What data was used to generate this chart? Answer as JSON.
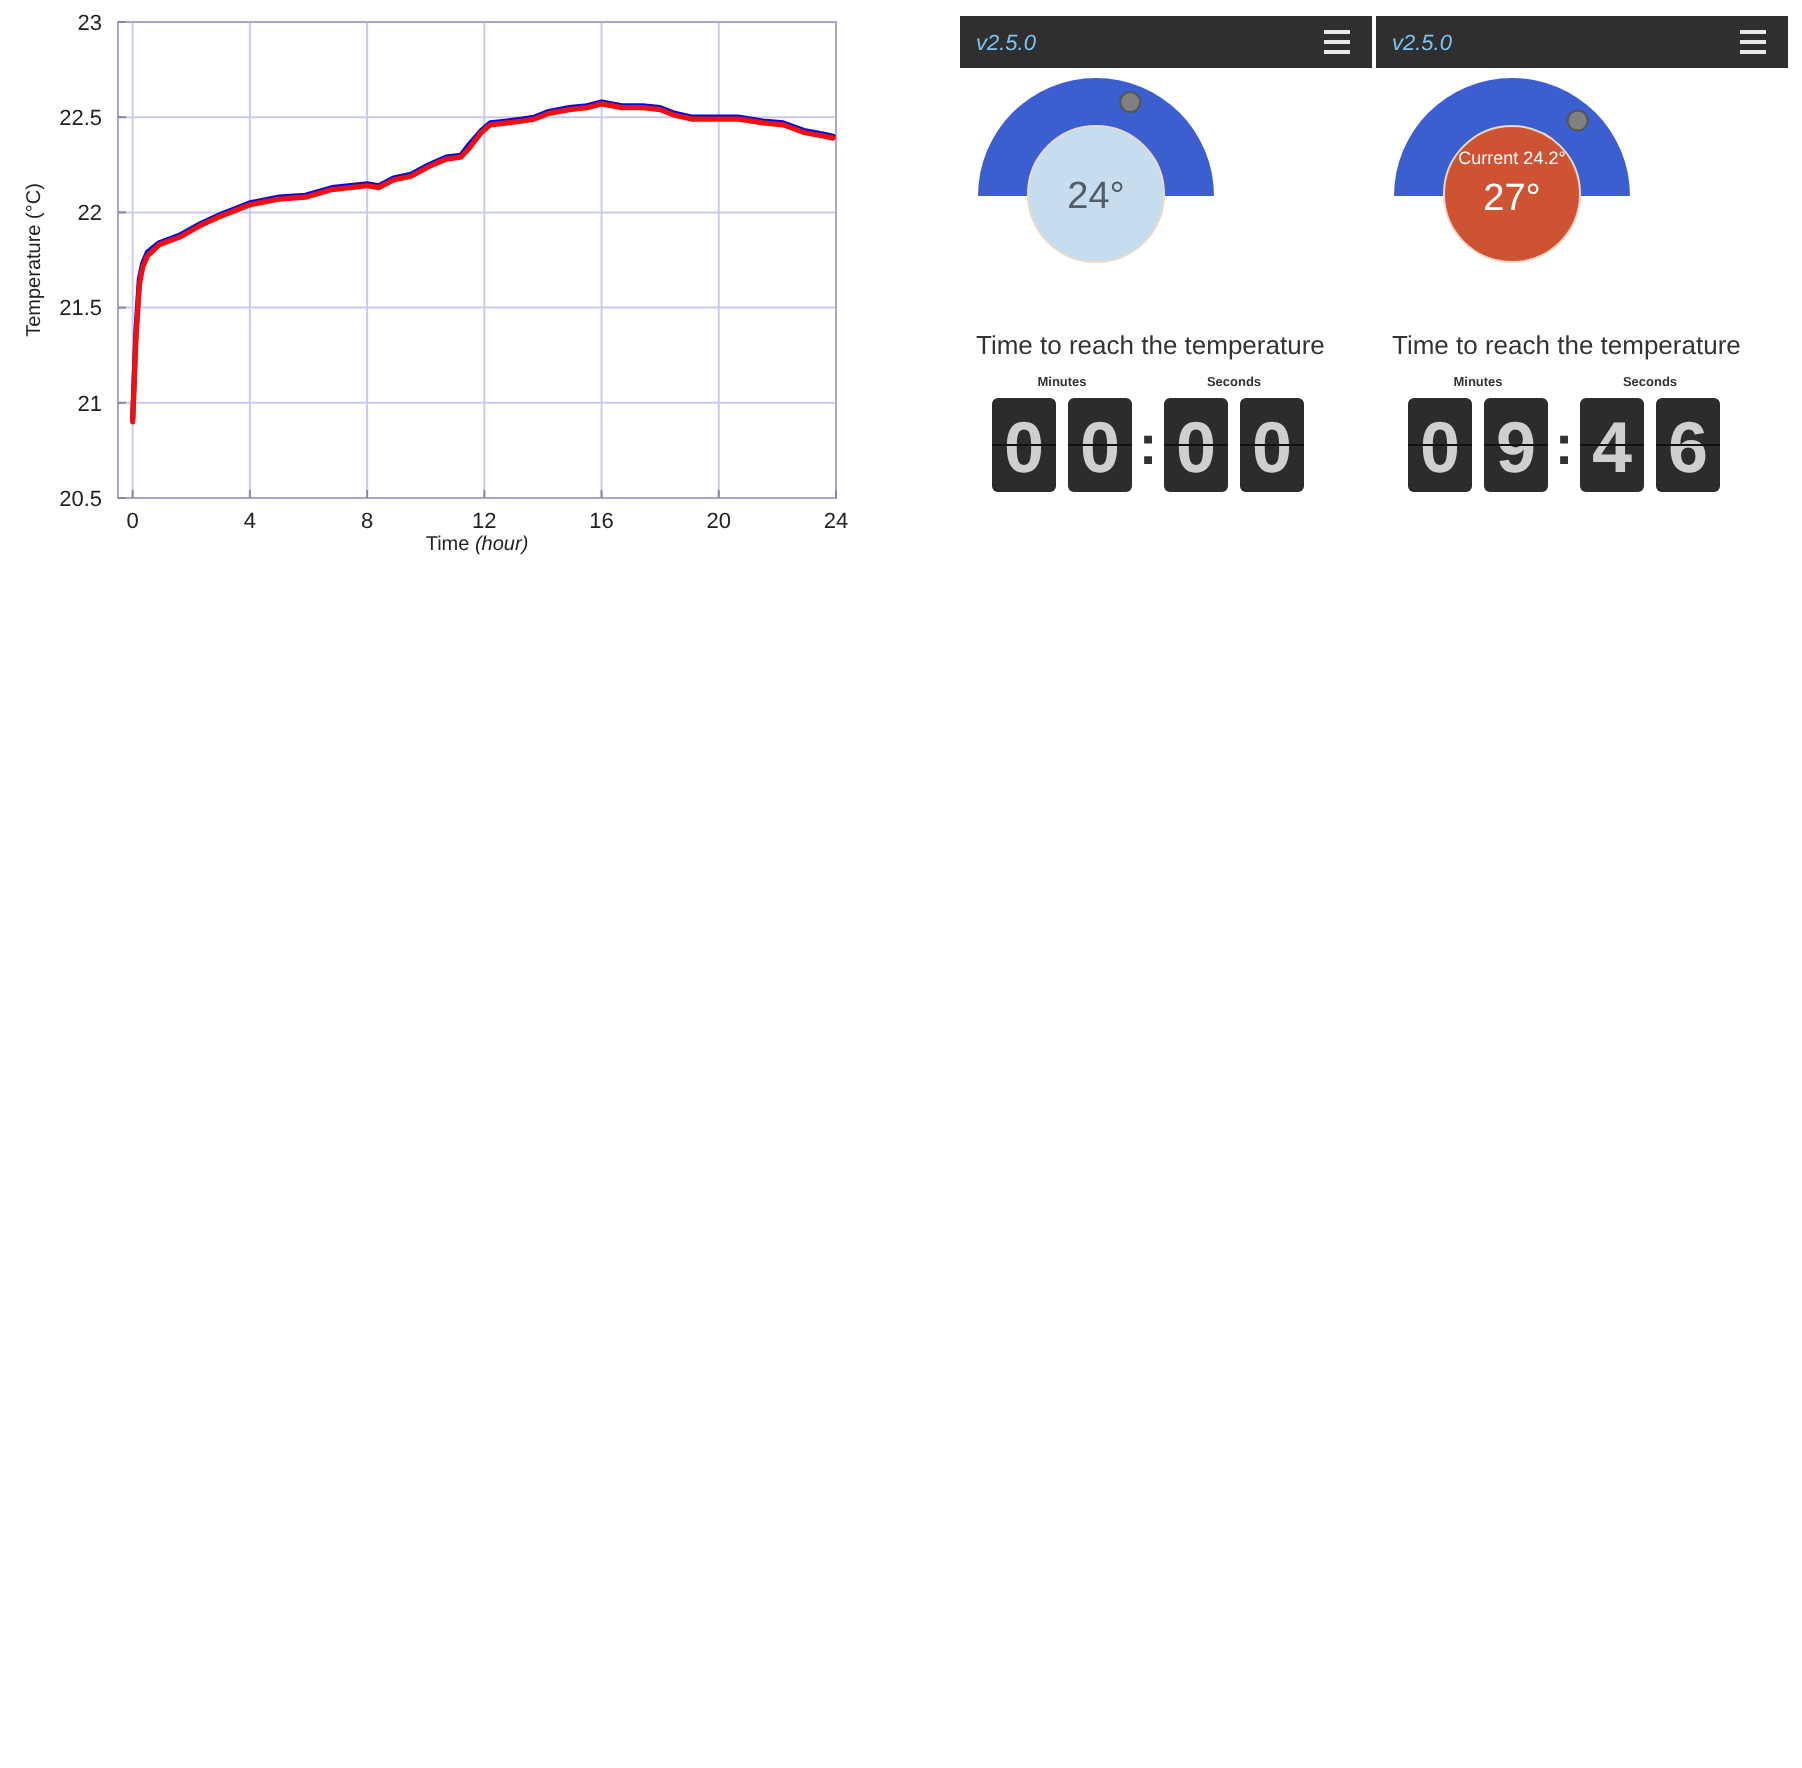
{
  "chart_data": [
    {
      "type": "line",
      "xlabel": "Time (hour)",
      "ylabel": "Temperature (°C)",
      "x": [
        0,
        0.11,
        0.23,
        0.34,
        0.5,
        0.9,
        1.6,
        2.3,
        3,
        4,
        5,
        5.9,
        6.8,
        8,
        8.4,
        8.9,
        9.5,
        10.1,
        10.7,
        11.2,
        11.5,
        11.9,
        12.2,
        12.8,
        13.3,
        13.7,
        14.2,
        14.9,
        15.5,
        16,
        16.7,
        17.4,
        18,
        18.5,
        19.1,
        19.9,
        20.7,
        21.5,
        22.2,
        22.9,
        23.6,
        23.9
      ],
      "series": [
        {
          "color": "#0a0ad8",
          "values": [
            20.91,
            21.37,
            21.65,
            21.73,
            21.79,
            21.84,
            21.88,
            21.94,
            21.99,
            22.05,
            22.08,
            22.09,
            22.13,
            22.15,
            22.14,
            22.18,
            22.2,
            22.25,
            22.29,
            22.3,
            22.36,
            22.43,
            22.47,
            22.48,
            22.49,
            22.5,
            22.53,
            22.55,
            22.56,
            22.58,
            22.56,
            22.56,
            22.55,
            22.52,
            22.5,
            22.5,
            22.5,
            22.48,
            22.47,
            22.43,
            22.41,
            22.4
          ]
        },
        {
          "color": "#f01010",
          "values": [
            20.9,
            21.33,
            21.62,
            21.71,
            21.77,
            21.83,
            21.87,
            21.93,
            21.98,
            22.04,
            22.07,
            22.08,
            22.12,
            22.14,
            22.13,
            22.17,
            22.19,
            22.24,
            22.28,
            22.29,
            22.34,
            22.42,
            22.46,
            22.47,
            22.48,
            22.49,
            22.52,
            22.54,
            22.55,
            22.57,
            22.55,
            22.55,
            22.54,
            22.51,
            22.49,
            22.49,
            22.49,
            22.47,
            22.46,
            22.42,
            22.4,
            22.39
          ]
        }
      ],
      "xlim": [
        -0.5,
        24
      ],
      "ylim": [
        20.5,
        23
      ],
      "xticks": [
        0,
        4,
        8,
        12,
        16,
        20,
        24
      ],
      "yticks": [
        20.5,
        21,
        21.5,
        22,
        22.5,
        23
      ],
      "grid": true
    },
    {
      "type": "other",
      "subtitle": "v2.5.0",
      "title": "Time to reach the temperature",
      "colors": [
        "#3b5fce",
        "#c6dcef"
      ],
      "annotations": [
        "24°",
        "Minutes",
        "Seconds",
        "0",
        "0",
        ":",
        "0",
        "0"
      ]
    },
    {
      "type": "other",
      "subtitle": "v2.5.0",
      "title": "Time to reach the temperature",
      "colors": [
        "#3b5fce",
        "#cd5332"
      ],
      "annotations": [
        "Current 24.2°",
        "27°",
        "Minutes",
        "Seconds",
        "0",
        "9",
        ":",
        "4",
        "6"
      ]
    }
  ]
}
